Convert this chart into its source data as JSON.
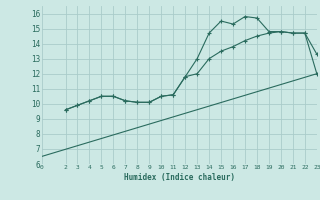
{
  "xlabel": "Humidex (Indice chaleur)",
  "bg_color": "#cce8e4",
  "grid_color": "#aaccca",
  "line_color": "#2a6b5e",
  "x_ticks": [
    0,
    2,
    3,
    4,
    5,
    6,
    7,
    8,
    9,
    10,
    11,
    12,
    13,
    14,
    15,
    16,
    17,
    18,
    19,
    20,
    21,
    22,
    23
  ],
  "ylim": [
    6,
    16.5
  ],
  "xlim": [
    0,
    23
  ],
  "yticks": [
    6,
    7,
    8,
    9,
    10,
    11,
    12,
    13,
    14,
    15,
    16
  ],
  "line1_x": [
    2,
    3,
    4,
    5,
    6,
    7,
    8,
    9,
    10,
    11,
    12,
    13,
    14,
    15,
    16,
    17,
    18,
    19,
    20,
    21,
    22,
    23
  ],
  "line1_y": [
    9.6,
    9.9,
    10.2,
    10.5,
    10.5,
    10.2,
    10.1,
    10.1,
    10.5,
    10.6,
    11.8,
    13.0,
    14.7,
    15.5,
    15.3,
    15.8,
    15.7,
    14.8,
    14.8,
    14.7,
    14.7,
    13.3
  ],
  "line2_x": [
    2,
    3,
    4,
    5,
    6,
    7,
    8,
    9,
    10,
    11,
    12,
    13,
    14,
    15,
    16,
    17,
    18,
    19,
    20,
    21,
    22,
    23
  ],
  "line2_y": [
    9.6,
    9.9,
    10.2,
    10.5,
    10.5,
    10.2,
    10.1,
    10.1,
    10.5,
    10.6,
    11.8,
    12.0,
    13.0,
    13.5,
    13.8,
    14.2,
    14.5,
    14.7,
    14.8,
    14.7,
    14.7,
    12.0
  ],
  "line3_x": [
    0,
    23
  ],
  "line3_y": [
    6.5,
    12.0
  ]
}
